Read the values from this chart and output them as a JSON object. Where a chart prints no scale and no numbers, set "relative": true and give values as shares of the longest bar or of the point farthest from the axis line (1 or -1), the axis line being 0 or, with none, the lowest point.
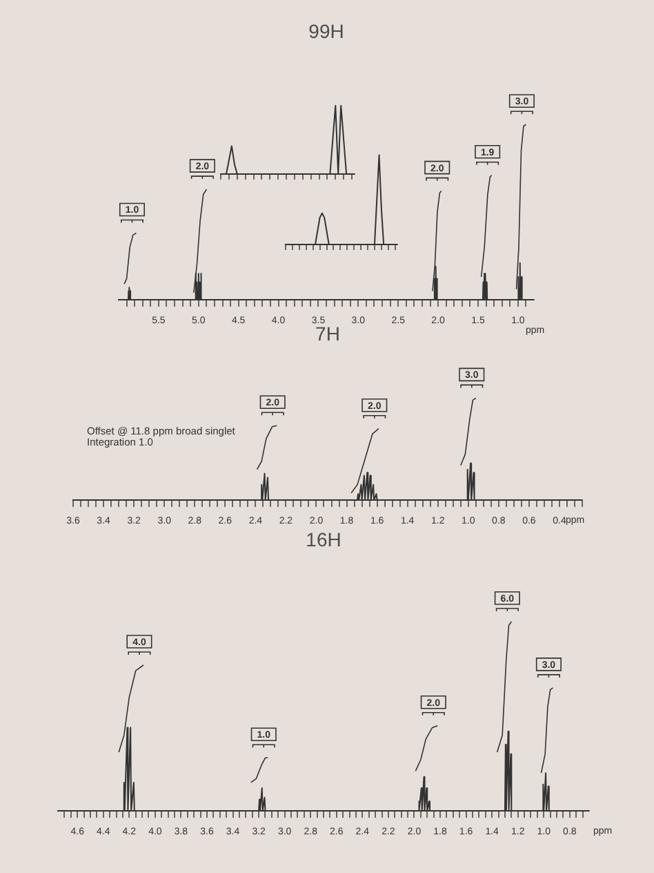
{
  "chart_data": [
    {
      "type": "line",
      "title": "99H",
      "xlabel": "ppm",
      "relative": true,
      "xlim": [
        6.0,
        0.8
      ],
      "xticks": [
        {
          "value": 5.9,
          "label": null
        },
        {
          "value": 5.8,
          "label": null
        },
        {
          "value": 5.7,
          "label": null
        },
        {
          "value": 5.6,
          "label": null
        },
        5.5,
        {
          "value": 5.4,
          "label": null
        },
        {
          "value": 5.3,
          "label": null
        },
        {
          "value": 5.2,
          "label": null
        },
        {
          "value": 5.1,
          "label": null
        },
        {
          "value": 5,
          "label": "5.0"
        },
        {
          "value": 4.9,
          "label": null
        },
        {
          "value": 4.8,
          "label": null
        },
        {
          "value": 4.7,
          "label": null
        },
        {
          "value": 4.6,
          "label": null
        },
        4.5,
        {
          "value": 4.4,
          "label": null
        },
        {
          "value": 4.3,
          "label": null
        },
        {
          "value": 4.2,
          "label": null
        },
        {
          "value": 4.1,
          "label": null
        },
        {
          "value": 4,
          "label": "4.0"
        },
        {
          "value": 3.9,
          "label": null
        },
        {
          "value": 3.8,
          "label": null
        },
        {
          "value": 3.7,
          "label": null
        },
        {
          "value": 3.6,
          "label": null
        },
        3.5,
        {
          "value": 3.4,
          "label": null
        },
        {
          "value": 3.3,
          "label": null
        },
        {
          "value": 3.2,
          "label": null
        },
        {
          "value": 3.1,
          "label": null
        },
        {
          "value": 3,
          "label": "3.0"
        },
        {
          "value": 2.9,
          "label": null
        },
        {
          "value": 2.8,
          "label": null
        },
        {
          "value": 2.7,
          "label": null
        },
        {
          "value": 2.6,
          "label": null
        },
        2.5,
        {
          "value": 2.4,
          "label": null
        },
        {
          "value": 2.3,
          "label": null
        },
        {
          "value": 2.2,
          "label": null
        },
        {
          "value": 2.1,
          "label": null
        },
        {
          "value": 2,
          "label": "2.0"
        },
        {
          "value": 1.9,
          "label": null
        },
        {
          "value": 1.8,
          "label": null
        },
        {
          "value": 1.7,
          "label": null
        },
        {
          "value": 1.6,
          "label": null
        },
        1.5,
        {
          "value": 1.4,
          "label": null
        },
        {
          "value": 1.3,
          "label": null
        },
        {
          "value": 1.2,
          "label": null
        },
        {
          "value": 1.1,
          "label": null
        },
        {
          "value": 1,
          "label": "1.0"
        },
        {
          "value": 0.9,
          "label": null
        }
      ],
      "series": [
        {
          "color": "#333333",
          "x": [
            6.0,
            5.88,
            5.875,
            5.87,
            5.865,
            5.86,
            5.855,
            5.85,
            5.04,
            5.035,
            5.03,
            5.02,
            5.015,
            5.0,
            4.995,
            4.985,
            4.98,
            4.97,
            4.965,
            2.05,
            2.045,
            2.04,
            2.03,
            2.025,
            2.015,
            2.01,
            1.44,
            1.435,
            1.43,
            1.42,
            1.415,
            1.405,
            1.4,
            1.39,
            1.385,
            1.0,
            0.995,
            0.99,
            0.975,
            0.97,
            0.955,
            0.95,
            0.8
          ],
          "values": [
            0,
            0,
            0.05,
            0,
            0.07,
            0,
            0.05,
            0,
            0,
            0.15,
            0,
            0.1,
            0,
            0.15,
            0,
            0.1,
            0,
            0.15,
            0,
            0,
            0.12,
            0,
            0.19,
            0,
            0.12,
            0,
            0,
            0.1,
            0,
            0.15,
            0,
            0.15,
            0,
            0.1,
            0,
            0,
            0.13,
            0,
            0.21,
            0,
            0.13,
            0,
            0
          ]
        },
        {
          "color": "#333333",
          "x": [
            5.93,
            5.9,
            5.86,
            5.82,
            5.78
          ],
          "values": [
            0.09,
            0.12,
            0.3,
            0.37,
            0.38
          ]
        },
        {
          "color": "#333333",
          "x": [
            5.06,
            5.02,
            4.98,
            4.94,
            4.9
          ],
          "values": [
            0.04,
            0.2,
            0.45,
            0.6,
            0.63
          ]
        },
        {
          "color": "#333333",
          "x": [
            2.07,
            2.04,
            2.01,
            1.98,
            1.96
          ],
          "values": [
            0.05,
            0.2,
            0.5,
            0.61,
            0.62
          ]
        },
        {
          "color": "#333333",
          "x": [
            1.46,
            1.42,
            1.38,
            1.35,
            1.33
          ],
          "values": [
            0.13,
            0.3,
            0.6,
            0.7,
            0.71
          ]
        },
        {
          "color": "#333333",
          "x": [
            1.02,
            0.99,
            0.96,
            0.93,
            0.9
          ],
          "values": [
            0.06,
            0.3,
            0.85,
            0.99,
            1.0
          ]
        }
      ],
      "annotations": [
        {
          "text": "1.0",
          "x": 5.78,
          "y": 0.38
        },
        {
          "text": "2.0",
          "x": 4.9,
          "y": 0.63
        },
        {
          "text": "2.0",
          "x": 1.96,
          "y": 0.62
        },
        {
          "text": "1.9",
          "x": 1.33,
          "y": 0.71
        },
        {
          "text": "3.0",
          "x": 0.9,
          "y": 1.0
        }
      ]
    },
    {
      "type": "line",
      "relative": true,
      "categories": [
        null,
        null,
        null,
        null,
        null,
        null,
        null,
        null,
        null,
        null,
        null,
        null,
        null,
        null,
        null,
        null,
        null,
        null,
        null,
        null,
        null,
        null,
        null,
        null,
        null,
        null,
        null,
        null,
        null,
        null,
        null,
        null,
        null,
        null,
        null,
        null,
        null,
        null,
        null,
        null,
        null,
        null,
        null,
        null,
        null,
        null,
        null,
        null,
        null,
        null
      ],
      "series": [
        {
          "color": "#333333",
          "values": [
            0,
            0,
            0,
            0.2,
            0.41,
            0.15,
            0,
            0,
            0,
            0,
            0,
            0,
            0,
            0,
            0,
            0,
            0,
            0,
            0,
            0,
            0,
            0,
            0,
            0,
            0,
            0,
            0,
            0,
            0,
            0,
            0,
            0,
            0,
            0,
            0,
            0,
            0,
            0,
            0,
            0,
            0,
            0.5,
            1,
            0,
            1,
            0.5,
            0,
            0,
            0,
            0
          ]
        }
      ]
    },
    {
      "type": "line",
      "relative": true,
      "categories": [
        null,
        null,
        null,
        null,
        null,
        null,
        null,
        null,
        null,
        null,
        null,
        null,
        null,
        null,
        null,
        null,
        null,
        null,
        null,
        null,
        null,
        null,
        null,
        null,
        null,
        null,
        null,
        null,
        null,
        null,
        null,
        null,
        null,
        null,
        null,
        null,
        null,
        null,
        null,
        null,
        null,
        null,
        null,
        null,
        null,
        null,
        null,
        null,
        null,
        null
      ],
      "series": [
        {
          "color": "#333333",
          "values": [
            0,
            0,
            0,
            0,
            0,
            0,
            0,
            0,
            0,
            0,
            0,
            0,
            0,
            0,
            0.15,
            0.3,
            0.35,
            0.3,
            0.15,
            0,
            0,
            0,
            0,
            0,
            0,
            0,
            0,
            0,
            0,
            0,
            0,
            0,
            0,
            0,
            0,
            0,
            0,
            0,
            0,
            0,
            0.5,
            1,
            0.4,
            0,
            0,
            0,
            0,
            0,
            0,
            0
          ]
        }
      ]
    },
    {
      "type": "line",
      "title": "7H",
      "xlabel": "ppm",
      "relative": true,
      "xlim": [
        3.6,
        0.25
      ],
      "xticks": [
        3.6,
        {
          "value": 3.55,
          "label": null
        },
        {
          "value": 3.5,
          "label": null
        },
        {
          "value": 3.45,
          "label": null
        },
        3.4,
        {
          "value": 3.35,
          "label": null
        },
        {
          "value": 3.3,
          "label": null
        },
        {
          "value": 3.25,
          "label": null
        },
        3.2,
        {
          "value": 3.15,
          "label": null
        },
        {
          "value": 3.1,
          "label": null
        },
        {
          "value": 3.05,
          "label": null
        },
        {
          "value": 3,
          "label": "3.0"
        },
        {
          "value": 2.95,
          "label": null
        },
        {
          "value": 2.9,
          "label": null
        },
        {
          "value": 2.85,
          "label": null
        },
        2.8,
        {
          "value": 2.75,
          "label": null
        },
        {
          "value": 2.7,
          "label": null
        },
        {
          "value": 2.65,
          "label": null
        },
        2.6,
        {
          "value": 2.55,
          "label": null
        },
        {
          "value": 2.5,
          "label": null
        },
        {
          "value": 2.45,
          "label": null
        },
        2.4,
        {
          "value": 2.35,
          "label": null
        },
        {
          "value": 2.3,
          "label": null
        },
        {
          "value": 2.25,
          "label": null
        },
        2.2,
        {
          "value": 2.15,
          "label": null
        },
        {
          "value": 2.1,
          "label": null
        },
        {
          "value": 2.05,
          "label": null
        },
        {
          "value": 2,
          "label": "2.0"
        },
        {
          "value": 1.95,
          "label": null
        },
        {
          "value": 1.9,
          "label": null
        },
        {
          "value": 1.85,
          "label": null
        },
        1.8,
        {
          "value": 1.75,
          "label": null
        },
        {
          "value": 1.7,
          "label": null
        },
        {
          "value": 1.65,
          "label": null
        },
        1.6,
        {
          "value": 1.55,
          "label": null
        },
        {
          "value": 1.5,
          "label": null
        },
        {
          "value": 1.45,
          "label": null
        },
        1.4,
        {
          "value": 1.35,
          "label": null
        },
        {
          "value": 1.3,
          "label": null
        },
        {
          "value": 1.25,
          "label": null
        },
        1.2,
        {
          "value": 1.15,
          "label": null
        },
        {
          "value": 1.1,
          "label": null
        },
        {
          "value": 1.05,
          "label": null
        },
        {
          "value": 1,
          "label": "1.0"
        },
        {
          "value": 0.95,
          "label": null
        },
        {
          "value": 0.9,
          "label": null
        },
        {
          "value": 0.85,
          "label": null
        },
        0.8,
        {
          "value": 0.75,
          "label": null
        },
        {
          "value": 0.7,
          "label": null
        },
        {
          "value": 0.65,
          "label": null
        },
        0.6,
        {
          "value": 0.55,
          "label": null
        },
        {
          "value": 0.5,
          "label": null
        },
        {
          "value": 0.45,
          "label": null
        },
        0.4,
        {
          "value": 0.35,
          "label": null
        },
        {
          "value": 0.3,
          "label": null
        },
        {
          "value": 0.25,
          "label": null
        }
      ],
      "series": [
        {
          "color": "#333333",
          "x": [
            3.6,
            2.365,
            2.36,
            2.355,
            2.34,
            2.335,
            2.32,
            2.315,
            1.73,
            1.725,
            1.72,
            1.705,
            1.7,
            1.685,
            1.68,
            1.665,
            1.66,
            1.645,
            1.64,
            1.625,
            1.62,
            1.605,
            1.6,
            1.01,
            1.005,
            1.0,
            0.985,
            0.98,
            0.965,
            0.96,
            0.25
          ],
          "values": [
            0,
            0,
            0.15,
            0,
            0.26,
            0,
            0.22,
            0,
            0,
            0.06,
            0,
            0.15,
            0,
            0.24,
            0,
            0.27,
            0,
            0.24,
            0,
            0.15,
            0,
            0.06,
            0,
            0,
            0.3,
            0,
            0.36,
            0,
            0.27,
            0,
            0
          ]
        },
        {
          "color": "#333333",
          "x": [
            2.39,
            2.36,
            2.33,
            2.29,
            2.26
          ],
          "values": [
            0.3,
            0.38,
            0.6,
            0.72,
            0.73
          ]
        },
        {
          "color": "#333333",
          "x": [
            1.77,
            1.73,
            1.68,
            1.63,
            1.59
          ],
          "values": [
            0.07,
            0.15,
            0.4,
            0.65,
            0.7
          ]
        },
        {
          "color": "#333333",
          "x": [
            1.05,
            1.02,
            0.99,
            0.97,
            0.95
          ],
          "values": [
            0.34,
            0.45,
            0.8,
            0.98,
            1.0
          ]
        }
      ],
      "annotations": [
        "Offset @ 11.8 ppm broad singlet",
        "Integration 1.0",
        {
          "text": "2.0",
          "x": 2.26,
          "y": 0.73
        },
        {
          "text": "2.0",
          "x": 1.59,
          "y": 0.7
        },
        {
          "text": "3.0",
          "x": 0.95,
          "y": 1.0
        }
      ]
    },
    {
      "type": "line",
      "title": "16H",
      "xlabel": "ppm",
      "relative": true,
      "xlim": [
        4.75,
        0.65
      ],
      "xticks": [
        {
          "value": 4.7,
          "label": null
        },
        {
          "value": 4.65,
          "label": null
        },
        4.6,
        {
          "value": 4.55,
          "label": null
        },
        {
          "value": 4.5,
          "label": null
        },
        {
          "value": 4.45,
          "label": null
        },
        4.4,
        {
          "value": 4.35,
          "label": null
        },
        {
          "value": 4.3,
          "label": null
        },
        {
          "value": 4.25,
          "label": null
        },
        4.2,
        {
          "value": 4.15,
          "label": null
        },
        {
          "value": 4.1,
          "label": null
        },
        {
          "value": 4.05,
          "label": null
        },
        {
          "value": 4,
          "label": "4.0"
        },
        {
          "value": 3.95,
          "label": null
        },
        {
          "value": 3.9,
          "label": null
        },
        {
          "value": 3.85,
          "label": null
        },
        3.8,
        {
          "value": 3.75,
          "label": null
        },
        {
          "value": 3.7,
          "label": null
        },
        {
          "value": 3.65,
          "label": null
        },
        3.6,
        {
          "value": 3.55,
          "label": null
        },
        {
          "value": 3.5,
          "label": null
        },
        {
          "value": 3.45,
          "label": null
        },
        3.4,
        {
          "value": 3.35,
          "label": null
        },
        {
          "value": 3.3,
          "label": null
        },
        {
          "value": 3.25,
          "label": null
        },
        3.2,
        {
          "value": 3.15,
          "label": null
        },
        {
          "value": 3.1,
          "label": null
        },
        {
          "value": 3.05,
          "label": null
        },
        {
          "value": 3,
          "label": "3.0"
        },
        {
          "value": 2.95,
          "label": null
        },
        {
          "value": 2.9,
          "label": null
        },
        {
          "value": 2.85,
          "label": null
        },
        2.8,
        {
          "value": 2.75,
          "label": null
        },
        {
          "value": 2.7,
          "label": null
        },
        {
          "value": 2.65,
          "label": null
        },
        2.6,
        {
          "value": 2.55,
          "label": null
        },
        {
          "value": 2.5,
          "label": null
        },
        {
          "value": 2.45,
          "label": null
        },
        2.4,
        {
          "value": 2.35,
          "label": null
        },
        {
          "value": 2.3,
          "label": null
        },
        {
          "value": 2.25,
          "label": null
        },
        2.2,
        {
          "value": 2.15,
          "label": null
        },
        {
          "value": 2.1,
          "label": null
        },
        {
          "value": 2.05,
          "label": null
        },
        {
          "value": 2,
          "label": "2.0"
        },
        {
          "value": 1.95,
          "label": null
        },
        {
          "value": 1.9,
          "label": null
        },
        {
          "value": 1.85,
          "label": null
        },
        1.8,
        {
          "value": 1.75,
          "label": null
        },
        {
          "value": 1.7,
          "label": null
        },
        {
          "value": 1.65,
          "label": null
        },
        1.6,
        {
          "value": 1.55,
          "label": null
        },
        {
          "value": 1.5,
          "label": null
        },
        {
          "value": 1.45,
          "label": null
        },
        1.4,
        {
          "value": 1.35,
          "label": null
        },
        {
          "value": 1.3,
          "label": null
        },
        {
          "value": 1.25,
          "label": null
        },
        1.2,
        {
          "value": 1.15,
          "label": null
        },
        {
          "value": 1.1,
          "label": null
        },
        {
          "value": 1.05,
          "label": null
        },
        {
          "value": 1,
          "label": "1.0"
        },
        {
          "value": 0.95,
          "label": null
        },
        {
          "value": 0.9,
          "label": null
        },
        {
          "value": 0.85,
          "label": null
        },
        0.8,
        {
          "value": 0.75,
          "label": null
        },
        {
          "value": 0.7,
          "label": null
        }
      ],
      "series": [
        {
          "color": "#333333",
          "x": [
            4.75,
            4.245,
            4.24,
            4.235,
            4.215,
            4.21,
            4.19,
            4.185,
            4.165,
            4.16,
            3.2,
            3.195,
            3.19,
            3.175,
            3.17,
            3.155,
            3.15,
            1.97,
            1.965,
            1.96,
            1.945,
            1.94,
            1.925,
            1.92,
            1.905,
            1.9,
            1.885,
            1.88,
            1.3,
            1.295,
            1.29,
            1.275,
            1.27,
            1.255,
            1.25,
            1.01,
            1.005,
            1.0,
            0.985,
            0.98,
            0.965,
            0.96,
            0.65
          ],
          "values": [
            0,
            0,
            0.15,
            0,
            0.44,
            0,
            0.44,
            0,
            0.15,
            0,
            0,
            0.06,
            0,
            0.12,
            0,
            0.07,
            0,
            0,
            0.05,
            0,
            0.12,
            0,
            0.18,
            0,
            0.12,
            0,
            0.05,
            0,
            0,
            0.35,
            0,
            0.42,
            0,
            0.3,
            0,
            0,
            0.14,
            0,
            0.2,
            0,
            0.13,
            0,
            0
          ]
        },
        {
          "color": "#333333",
          "x": [
            4.28,
            4.24,
            4.2,
            4.15,
            4.09
          ],
          "values": [
            0.31,
            0.4,
            0.6,
            0.74,
            0.77
          ]
        },
        {
          "color": "#333333",
          "x": [
            3.26,
            3.22,
            3.18,
            3.15,
            3.13
          ],
          "values": [
            0.15,
            0.17,
            0.24,
            0.28,
            0.28
          ]
        },
        {
          "color": "#333333",
          "x": [
            1.99,
            1.95,
            1.91,
            1.86,
            1.82
          ],
          "values": [
            0.21,
            0.27,
            0.38,
            0.44,
            0.45
          ]
        },
        {
          "color": "#333333",
          "x": [
            1.36,
            1.32,
            1.29,
            1.27,
            1.25
          ],
          "values": [
            0.31,
            0.4,
            0.8,
            0.98,
            1.0
          ]
        },
        {
          "color": "#333333",
          "x": [
            1.02,
            0.99,
            0.97,
            0.95,
            0.93
          ],
          "values": [
            0.2,
            0.3,
            0.55,
            0.64,
            0.65
          ]
        }
      ],
      "annotations": [
        {
          "text": "4.0",
          "x": 4.09,
          "y": 0.77
        },
        {
          "text": "1.0",
          "x": 3.13,
          "y": 0.28
        },
        {
          "text": "2.0",
          "x": 1.82,
          "y": 0.45
        },
        {
          "text": "6.0",
          "x": 1.25,
          "y": 1.0
        },
        {
          "text": "3.0",
          "x": 0.93,
          "y": 0.65
        }
      ]
    }
  ]
}
